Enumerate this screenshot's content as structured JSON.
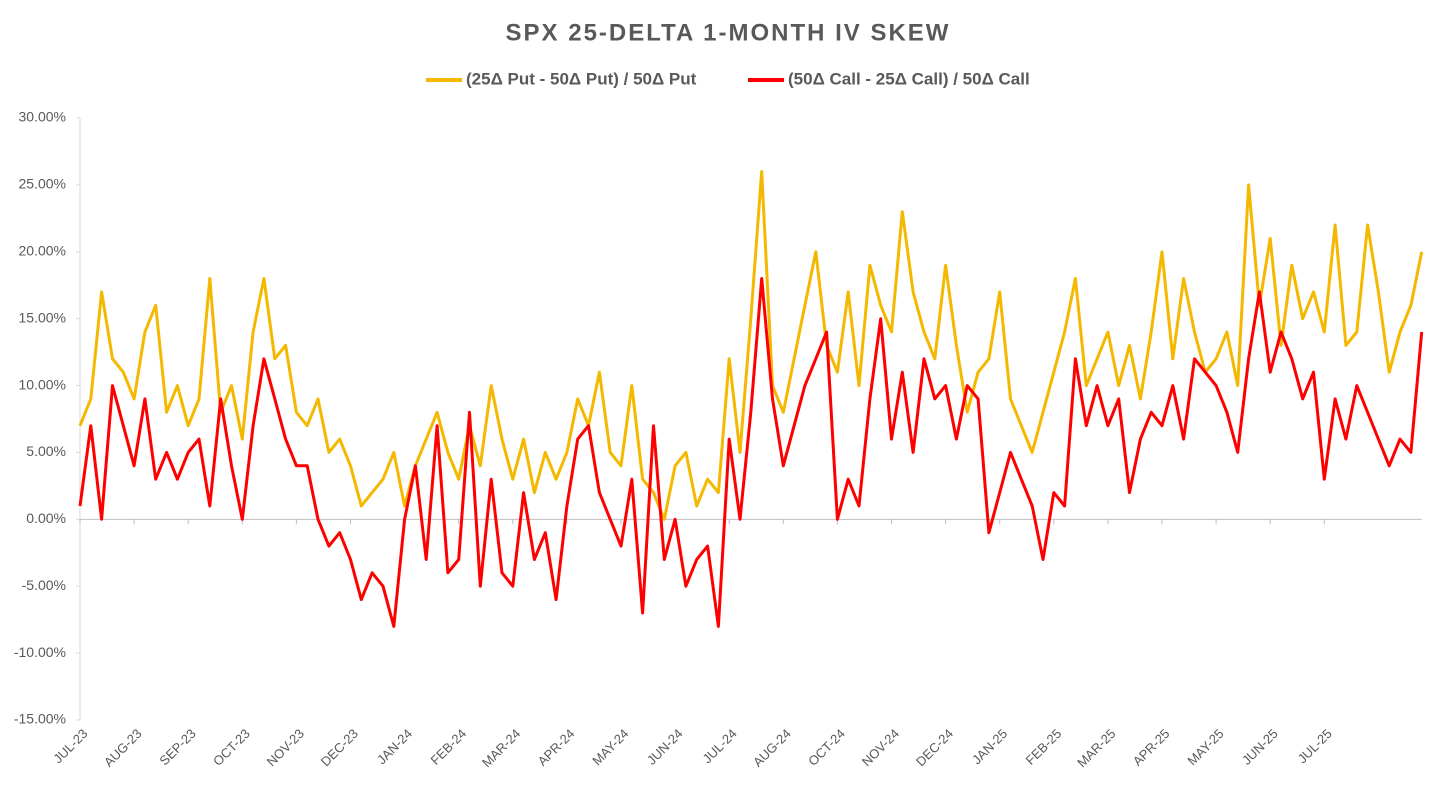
{
  "chart_data": {
    "type": "line",
    "title": "SPX 25-DELTA 1-MONTH IV SKEW",
    "categories": [
      "JUL-23",
      null,
      null,
      null,
      null,
      "AUG-23",
      null,
      null,
      null,
      null,
      "SEP-23",
      null,
      null,
      null,
      null,
      "OCT-23",
      null,
      null,
      null,
      null,
      "NOV-23",
      null,
      null,
      null,
      null,
      "DEC-23",
      null,
      null,
      null,
      null,
      "JAN-24",
      null,
      null,
      null,
      null,
      "FEB-24",
      null,
      null,
      null,
      null,
      "MAR-24",
      null,
      null,
      null,
      null,
      "APR-24",
      null,
      null,
      null,
      null,
      "MAY-24",
      null,
      null,
      null,
      null,
      "JUN-24",
      null,
      null,
      null,
      null,
      "JUL-24",
      null,
      null,
      null,
      null,
      "AUG-24",
      null,
      null,
      null,
      null,
      "OCT-24",
      null,
      null,
      null,
      null,
      "NOV-24",
      null,
      null,
      null,
      null,
      "DEC-24",
      null,
      null,
      null,
      null,
      "JAN-25",
      null,
      null,
      null,
      null,
      "FEB-25",
      null,
      null,
      null,
      null,
      "MAR-25",
      null,
      null,
      null,
      null,
      "APR-25",
      null,
      null,
      null,
      null,
      "MAY-25",
      null,
      null,
      null,
      null,
      "JUN-25",
      null,
      null,
      null,
      null,
      "JUL-25",
      null,
      null,
      null,
      null,
      null,
      null,
      null,
      null,
      null
    ],
    "series": [
      {
        "name": "(25Δ Put - 50Δ Put) / 50Δ Put",
        "color": "#f5b800",
        "values": [
          7,
          9,
          17,
          12,
          11,
          9,
          14,
          16,
          8,
          10,
          7,
          9,
          18,
          8,
          10,
          6,
          14,
          18,
          12,
          13,
          8,
          7,
          9,
          5,
          6,
          4,
          1,
          2,
          3,
          5,
          1,
          4,
          6,
          8,
          5,
          3,
          7,
          4,
          10,
          6,
          3,
          6,
          2,
          5,
          3,
          5,
          9,
          7,
          11,
          5,
          4,
          10,
          3,
          2,
          0,
          4,
          5,
          1,
          3,
          2,
          12,
          5,
          15,
          26,
          10,
          8,
          12,
          16,
          20,
          13,
          11,
          17,
          10,
          19,
          16,
          14,
          23,
          17,
          14,
          12,
          19,
          13,
          8,
          11,
          12,
          17,
          9,
          7,
          5,
          8,
          11,
          14,
          18,
          10,
          12,
          14,
          10,
          13,
          9,
          14,
          20,
          12,
          18,
          14,
          11,
          12,
          14,
          10,
          25,
          16,
          21,
          13,
          19,
          15,
          17,
          14,
          22,
          13,
          14,
          22,
          17,
          11,
          14,
          16,
          20
        ]
      },
      {
        "name": "(50Δ Call - 25Δ Call) / 50Δ Call",
        "color": "#ff0000",
        "values": [
          1,
          7,
          0,
          10,
          7,
          4,
          9,
          3,
          5,
          3,
          5,
          6,
          1,
          9,
          4,
          0,
          7,
          12,
          9,
          6,
          4,
          4,
          0,
          -2,
          -1,
          -3,
          -6,
          -4,
          -5,
          -8,
          0,
          4,
          -3,
          7,
          -4,
          -3,
          8,
          -5,
          3,
          -4,
          -5,
          2,
          -3,
          -1,
          -6,
          1,
          6,
          7,
          2,
          0,
          -2,
          3,
          -7,
          7,
          -3,
          0,
          -5,
          -3,
          -2,
          -8,
          6,
          0,
          8,
          18,
          9,
          4,
          7,
          10,
          12,
          14,
          0,
          3,
          1,
          9,
          15,
          6,
          11,
          5,
          12,
          9,
          10,
          6,
          10,
          9,
          -1,
          2,
          5,
          3,
          1,
          -3,
          2,
          1,
          12,
          7,
          10,
          7,
          9,
          2,
          6,
          8,
          7,
          10,
          6,
          12,
          11,
          10,
          8,
          5,
          12,
          17,
          11,
          14,
          12,
          9,
          11,
          3,
          9,
          6,
          10,
          8,
          6,
          4,
          6,
          5,
          14
        ]
      }
    ],
    "ylim": [
      -15,
      30
    ],
    "yticks": [
      {
        "value": -15,
        "label": "-15.00%"
      },
      {
        "value": -10,
        "label": "-10.00%"
      },
      {
        "value": -5,
        "label": "-5.00%"
      },
      {
        "value": 0,
        "label": "0.00%"
      },
      {
        "value": 5,
        "label": "5.00%"
      },
      {
        "value": 10,
        "label": "10.00%"
      },
      {
        "value": 15,
        "label": "15.00%"
      },
      {
        "value": 20,
        "label": "20.00%"
      },
      {
        "value": 25,
        "label": "25.00%"
      },
      {
        "value": 30,
        "label": "30.00%"
      }
    ],
    "grid": false,
    "legend": "top"
  }
}
